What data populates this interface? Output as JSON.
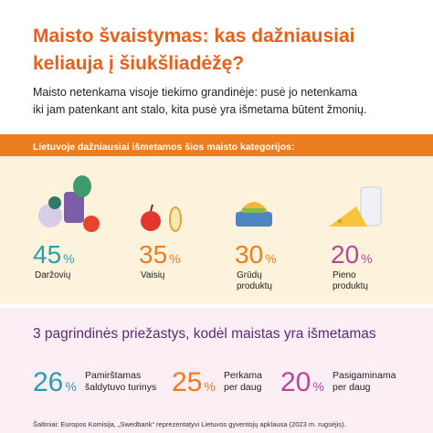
{
  "header": {
    "title": [
      "Maisto švaistymas: kas dažniausiai",
      "keliauja į šiukšliadėžę?"
    ],
    "subtitle": [
      "Maisto netenkama visoje tiekimo grandinėje: pusė jo netenkama",
      "iki jam patenkant ant stalo, kita pusė yra išmetama būtent žmonių."
    ]
  },
  "categories": {
    "heading": "Lietuvoje dažniausiai išmetamos šios maisto kategorijos:",
    "items": [
      {
        "value": 45,
        "unit": "%",
        "label": [
          "Daržovių"
        ],
        "color": "#2b9db3"
      },
      {
        "value": 35,
        "unit": "%",
        "label": [
          "Vaisių"
        ],
        "color": "#ee7d1f"
      },
      {
        "value": 30,
        "unit": "%",
        "label": [
          "Grūdų",
          "produktų"
        ],
        "color": "#ee7d1f"
      },
      {
        "value": 20,
        "unit": "%",
        "label": [
          "Pieno",
          "produktų"
        ],
        "color": "#b8479a"
      }
    ]
  },
  "reasons": {
    "heading": "3 pagrindinės priežastys, kodėl maistas yra išmetamas",
    "items": [
      {
        "value": 26,
        "unit": "%",
        "label": [
          "Pamirštamas",
          "šaldytuvo turinys"
        ],
        "color": "#2b9db3"
      },
      {
        "value": 25,
        "unit": "%",
        "label": [
          "Perkama",
          "per daug"
        ],
        "color": "#ee7d1f"
      },
      {
        "value": 20,
        "unit": "%",
        "label": [
          "Pasigaminama",
          "per daug"
        ],
        "color": "#b8479a"
      }
    ]
  },
  "source": "Šaltiniai: Europos Komisija, „Swedbank“ reprezentatyvi Lietuvos gyventojų apklausa (2023 m. rugsėjis)."
}
